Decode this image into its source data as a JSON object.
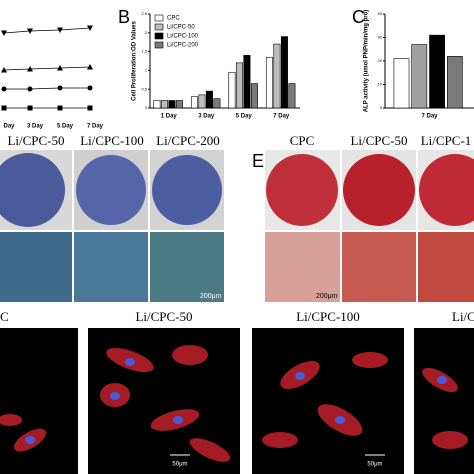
{
  "chart_data": [
    {
      "type": "line",
      "categories": [
        "Day",
        "3 Day",
        "5 Day",
        "7 Day"
      ],
      "ylim": [
        0,
        1
      ],
      "series": [
        {
          "marker": "triangle-down",
          "color": "#000000",
          "values": [
            0.87,
            0.89,
            0.9,
            0.92
          ]
        },
        {
          "marker": "triangle",
          "color": "#000000",
          "values": [
            0.5,
            0.51,
            0.52,
            0.53
          ]
        },
        {
          "marker": "circle",
          "color": "#000000",
          "values": [
            0.31,
            0.31,
            0.32,
            0.32
          ]
        },
        {
          "marker": "square",
          "color": "#000000",
          "values": [
            0.12,
            0.12,
            0.12,
            0.12
          ]
        }
      ]
    },
    {
      "type": "bar",
      "label": "B",
      "y_label": "Cell Proliferation:OD Values",
      "categories": [
        "1 Day",
        "3 Day",
        "5 Day",
        "7 Day"
      ],
      "ylim": [
        0,
        2.5
      ],
      "yticks": [
        0,
        0.5,
        1,
        1.5,
        2,
        2.5
      ],
      "legend": "top-left",
      "series": [
        {
          "name": "CPC",
          "color": "#ffffff",
          "values": [
            0.2,
            0.3,
            0.95,
            1.35
          ]
        },
        {
          "name": "Li/CPC-50",
          "color": "#bdbdbd",
          "values": [
            0.2,
            0.35,
            1.2,
            1.7
          ]
        },
        {
          "name": "Li/CPC-100",
          "color": "#000000",
          "values": [
            0.2,
            0.45,
            1.4,
            1.9
          ]
        },
        {
          "name": "Li/CPC-200",
          "color": "#7a7a7a",
          "values": [
            0.2,
            0.25,
            0.65,
            0.65
          ]
        }
      ]
    },
    {
      "type": "bar",
      "label": "C",
      "y_label": "ALP activity (umol PNP/min/mg pro)",
      "categories": [
        "7 Day"
      ],
      "ylim": [
        0,
        40
      ],
      "yticks": [
        0,
        10,
        20,
        30,
        40
      ],
      "series": [
        {
          "name": "CPC",
          "color": "#ffffff",
          "values": [
            21
          ]
        },
        {
          "name": "Li/CPC-50",
          "color": "#a0a0a0",
          "values": [
            27
          ]
        },
        {
          "name": "Li/CPC-100",
          "color": "#000000",
          "values": [
            31
          ]
        },
        {
          "name": "Li/CPC-200",
          "color": "#7a7a7a",
          "values": [
            22
          ]
        }
      ]
    }
  ],
  "staining": {
    "blue_labels": [
      "Li/CPC-50",
      "Li/CPC-100",
      "Li/CPC-200"
    ],
    "red_panel": "E",
    "red_labels": [
      "CPC",
      "Li/CPC-50",
      "Li/CPC-1"
    ],
    "scale_bar": "200μm"
  },
  "fluorescence": {
    "labels": [
      "C",
      "Li/CPC-50",
      "Li/CPC-100",
      "Li/C"
    ],
    "scale_bar": "50μm"
  }
}
